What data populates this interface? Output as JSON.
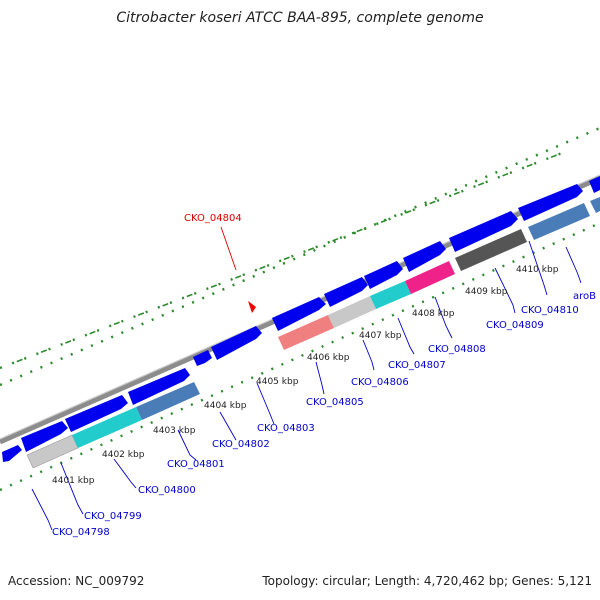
{
  "title": "Citrobacter koseri ATCC BAA-895, complete genome",
  "footer": {
    "accession": "Accession: NC_009792",
    "summary": "Topology: circular; Length: 4,720,462 bp; Genes: 5,121"
  },
  "colors": {
    "forward_gene": "#0000ee",
    "label_default": "#0000cc",
    "label_highlight": "#dd0000",
    "dots": "#2d8a2d",
    "backbone": "#909090"
  },
  "ticks": [
    "4401 kbp",
    "4402 kbp",
    "4403 kbp",
    "4404 kbp",
    "4405 kbp",
    "4406 kbp",
    "4407 kbp",
    "4408 kbp",
    "4409 kbp",
    "4410 kbp"
  ],
  "genes": [
    {
      "id": "CKO_04798",
      "color": "#0000cc"
    },
    {
      "id": "CKO_04799",
      "color": "#0000cc"
    },
    {
      "id": "CKO_04800",
      "color": "#0000cc"
    },
    {
      "id": "CKO_04801",
      "color": "#0000cc"
    },
    {
      "id": "CKO_04802",
      "color": "#0000cc"
    },
    {
      "id": "CKO_04803",
      "color": "#0000cc"
    },
    {
      "id": "CKO_04804",
      "color": "#dd0000"
    },
    {
      "id": "CKO_04805",
      "color": "#0000cc"
    },
    {
      "id": "CKO_04806",
      "color": "#0000cc"
    },
    {
      "id": "CKO_04807",
      "color": "#0000cc"
    },
    {
      "id": "CKO_04808",
      "color": "#0000cc"
    },
    {
      "id": "CKO_04809",
      "color": "#0000cc"
    },
    {
      "id": "CKO_04810",
      "color": "#0000cc"
    },
    {
      "id": "aroB",
      "color": "#0000cc"
    }
  ]
}
